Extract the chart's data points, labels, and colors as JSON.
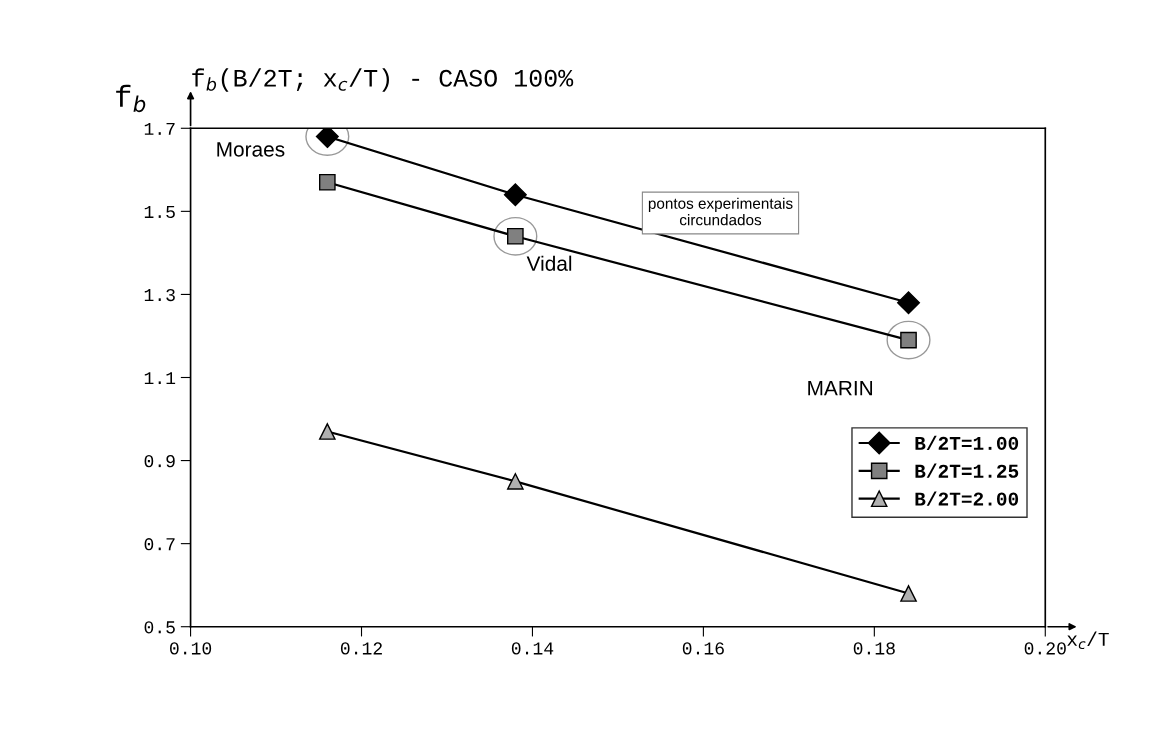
{
  "chart_data": {
    "type": "line",
    "title": "f$_{b}$(B/2T; x$_{c}$/T) - CASO 100%",
    "xlabel": "x$_{c}$/T",
    "ylabel": "f$_{b}$",
    "x": [
      0.116,
      0.138,
      0.184
    ],
    "series": [
      {
        "name": "B/2T=1.00",
        "color": "#000000",
        "marker": "diamond",
        "values": [
          1.68,
          1.54,
          1.28
        ]
      },
      {
        "name": "B/2T=1.25",
        "color": "#808080",
        "marker": "square",
        "values": [
          1.57,
          1.44,
          1.19
        ]
      },
      {
        "name": "B/2T=2.00",
        "color": "#b0b0b0",
        "marker": "triangle",
        "values": [
          0.97,
          0.85,
          0.58
        ]
      }
    ],
    "xlim": [
      0.1,
      0.2
    ],
    "xticks": [
      {
        "value": 0.1,
        "label": "0.10"
      },
      {
        "value": 0.12,
        "label": "0.12"
      },
      {
        "value": 0.14,
        "label": "0.14"
      },
      {
        "value": 0.16,
        "label": "0.16"
      },
      {
        "value": 0.18,
        "label": "0.18"
      },
      {
        "value": 0.2,
        "label": "0.20"
      }
    ],
    "ylim": [
      0.5,
      1.7
    ],
    "yticks": [
      0.5,
      0.7,
      0.9,
      1.1,
      1.3,
      1.5,
      1.7
    ],
    "annotations": [
      {
        "text": "Moraes",
        "x": 0.116,
        "y": 1.68
      },
      {
        "text": "Vidal",
        "x": 0.138,
        "y": 1.44
      },
      {
        "text": "MARIN",
        "x": 0.184,
        "y": 1.19
      },
      "pontos experimentais\ncircundados"
    ],
    "grid": false,
    "legend": "bottom right",
    "line_style": "solid"
  }
}
